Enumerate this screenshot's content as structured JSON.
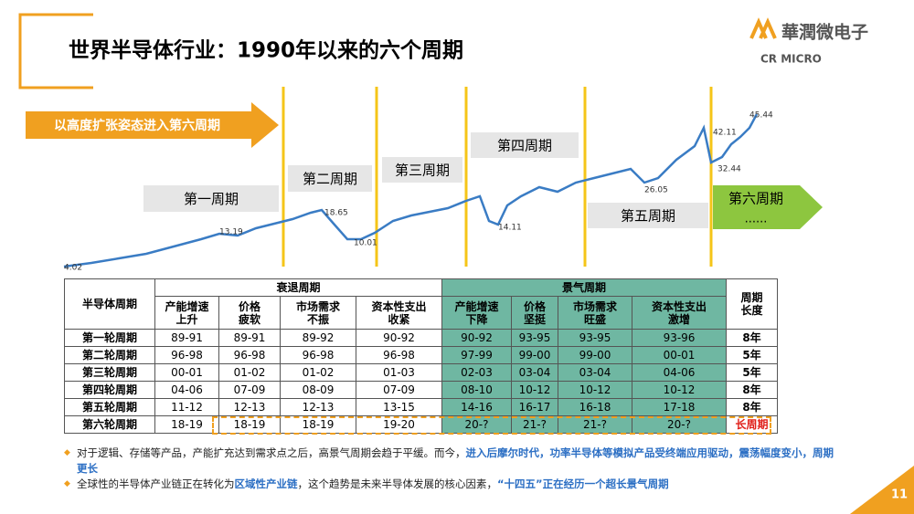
{
  "header": {
    "title": "世界半导体行业：1990年以来的六个周期",
    "logo_name": "華潤微电子",
    "logo_sub": "CR MICRO"
  },
  "banner": "以高度扩张姿态进入第六周期",
  "cycles": [
    "第一周期",
    "第二周期",
    "第三周期",
    "第四周期",
    "第五周期"
  ],
  "sixth": {
    "label": "第六周期",
    "note": "......"
  },
  "price_labels": [
    4.02,
    13.19,
    18.65,
    10.01,
    14.11,
    26.05,
    42.11,
    32.44,
    45.44
  ],
  "table": {
    "row_header": "半导体周期",
    "recession": "衰退周期",
    "boom": "景气周期",
    "length": [
      "周期",
      "长度"
    ],
    "columns": [
      [
        "产能增速",
        "上升"
      ],
      [
        "价格",
        "疲软"
      ],
      [
        "市场需求",
        "不振"
      ],
      [
        "资本性支出",
        "收紧"
      ],
      [
        "产能增速",
        "下降"
      ],
      [
        "价格",
        "坚挺"
      ],
      [
        "市场需求",
        "旺盛"
      ],
      [
        "资本性支出",
        "激增"
      ]
    ],
    "rows": [
      [
        "第一轮周期",
        "89-91",
        "89-91",
        "89-92",
        "90-92",
        "90-92",
        "93-95",
        "93-95",
        "93-96",
        "8年"
      ],
      [
        "第二轮周期",
        "96-98",
        "96-98",
        "96-98",
        "96-98",
        "97-99",
        "99-00",
        "99-00",
        "00-01",
        "5年"
      ],
      [
        "第三轮周期",
        "00-01",
        "01-02",
        "01-02",
        "01-03",
        "02-03",
        "03-04",
        "03-04",
        "04-06",
        "5年"
      ],
      [
        "第四轮周期",
        "04-06",
        "07-09",
        "08-09",
        "07-09",
        "08-10",
        "10-12",
        "10-12",
        "10-12",
        "8年"
      ],
      [
        "第五轮周期",
        "11-12",
        "12-13",
        "12-13",
        "13-15",
        "14-16",
        "16-17",
        "16-18",
        "17-18",
        "8年"
      ],
      [
        "第六轮周期",
        "18-19",
        "18-19",
        "18-19",
        "19-20",
        "20-?",
        "21-?",
        "21-?",
        "20-?",
        "长周期"
      ]
    ]
  },
  "bullets": [
    [
      {
        "text": "对于逻辑、存储等产品，产能扩充达到需求点之后，高景气周期会趋于平缓。而今，",
        "highlight": false
      },
      {
        "text": "进入后摩尔时代，功率半导体等模拟产品受终端应用驱动，震荡幅度变小，周期更长",
        "highlight": true
      }
    ],
    [
      {
        "text": "全球性的半导体产业链正在转化为",
        "highlight": false
      },
      {
        "text": "区域性产业链",
        "highlight": true
      },
      {
        "text": "，这个趋势是未来半导体发展的核心因素，",
        "highlight": false
      },
      {
        "text": "“十四五”正在经历一个超长景气周期",
        "highlight": true
      }
    ]
  ],
  "page_number": 11
}
